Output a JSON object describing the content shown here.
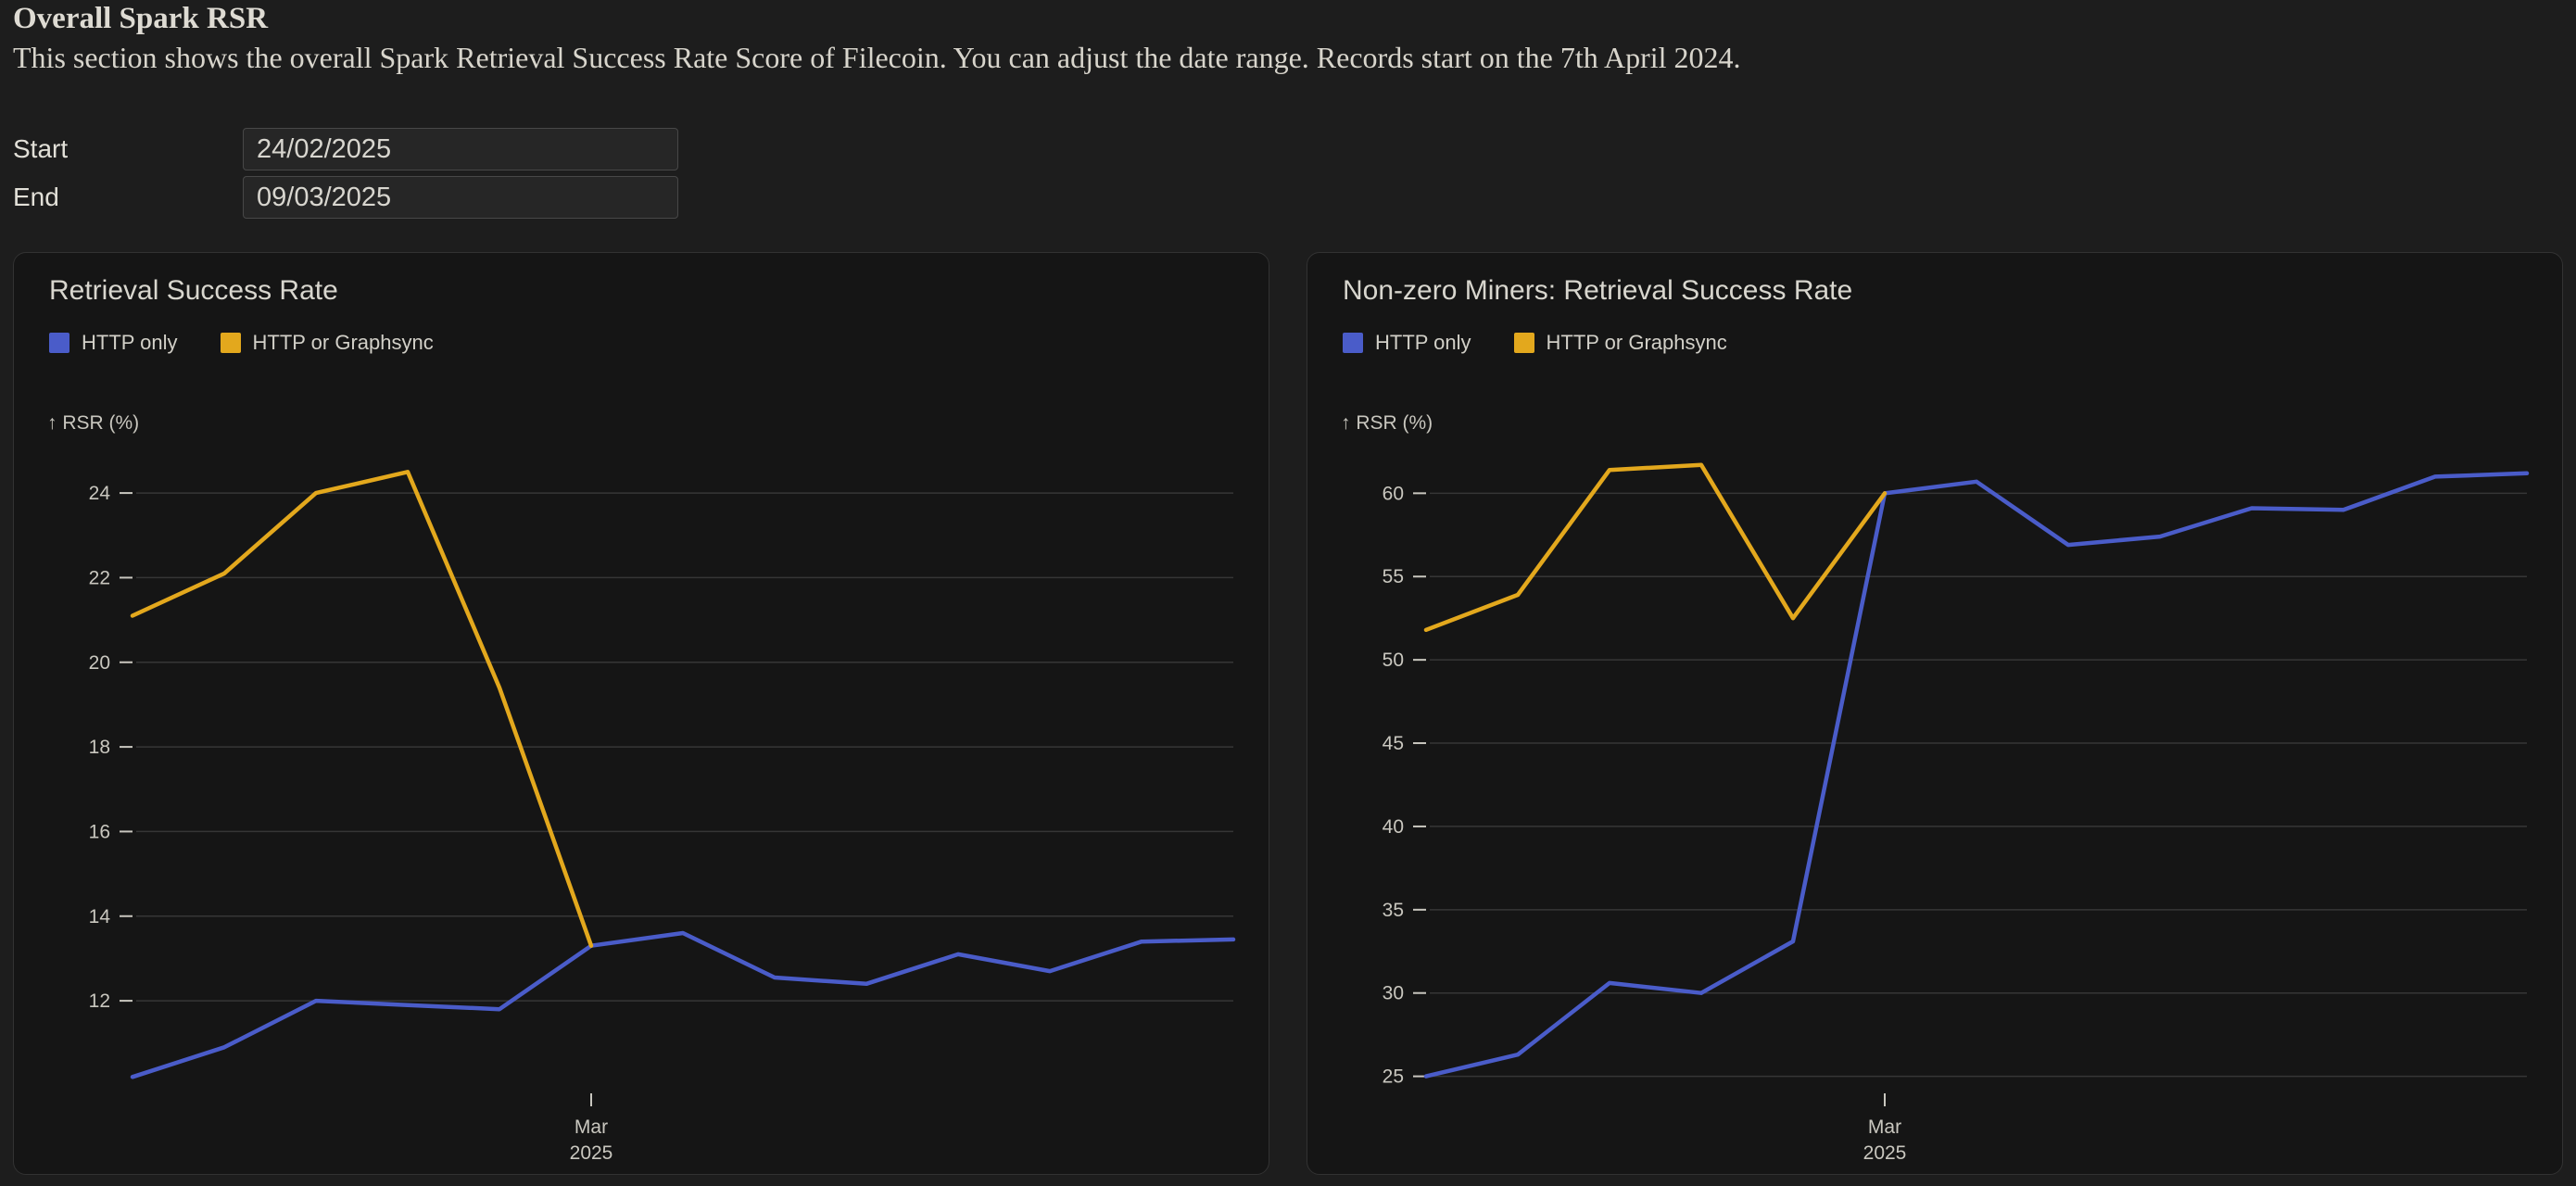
{
  "page": {
    "title": "Overall Spark RSR",
    "description": "This section shows the overall Spark Retrieval Success Rate Score of Filecoin. You can adjust the date range. Records start on the 7th April 2024."
  },
  "controls": {
    "start": {
      "label": "Start",
      "value": "24/02/2025"
    },
    "end": {
      "label": "End",
      "value": "09/03/2025"
    }
  },
  "colors": {
    "page_background": "#1d1d1d",
    "card_background": "#151515",
    "card_border": "#323232",
    "gridline": "#363636",
    "axis_text": "#c9c7bf",
    "blue_series": "#4a5cc9",
    "yellow_series": "#e3a81d"
  },
  "chart_data": [
    {
      "type": "line",
      "title": "Retrieval Success Rate",
      "ylabel": "↑ RSR (%)",
      "legend_position": "top",
      "grid": true,
      "x": [
        "2025-02-24",
        "2025-02-25",
        "2025-02-26",
        "2025-02-27",
        "2025-02-28",
        "2025-03-01",
        "2025-03-02",
        "2025-03-03",
        "2025-03-04",
        "2025-03-05",
        "2025-03-06",
        "2025-03-07",
        "2025-03-08"
      ],
      "ylim": [
        9.9,
        24.9
      ],
      "yticks": [
        24,
        22,
        20,
        18,
        16,
        14,
        12
      ],
      "xticks": [
        {
          "index": 5,
          "lines": [
            "Mar",
            "2025"
          ]
        }
      ],
      "series": [
        {
          "name": "HTTP only",
          "color": "#4a5cc9",
          "values": [
            10.2,
            10.9,
            12.0,
            11.9,
            11.8,
            13.3,
            13.6,
            12.55,
            12.4,
            13.1,
            12.7,
            13.4,
            13.45
          ]
        },
        {
          "name": "HTTP or Graphsync",
          "color": "#e3a81d",
          "values": [
            21.1,
            22.1,
            24.0,
            24.5,
            19.4,
            13.3,
            null,
            null,
            null,
            null,
            null,
            null,
            null
          ]
        }
      ]
    },
    {
      "type": "line",
      "title": "Non-zero Miners: Retrieval Success Rate",
      "ylabel": "↑ RSR (%)",
      "legend_position": "top",
      "grid": true,
      "x": [
        "2025-02-24",
        "2025-02-25",
        "2025-02-26",
        "2025-02-27",
        "2025-02-28",
        "2025-03-01",
        "2025-03-02",
        "2025-03-03",
        "2025-03-04",
        "2025-03-05",
        "2025-03-06",
        "2025-03-07",
        "2025-03-08"
      ],
      "ylim": [
        24.2,
        62.3
      ],
      "yticks": [
        60,
        55,
        50,
        45,
        40,
        35,
        30,
        25
      ],
      "xticks": [
        {
          "index": 5,
          "lines": [
            "Mar",
            "2025"
          ]
        }
      ],
      "series": [
        {
          "name": "HTTP only",
          "color": "#4a5cc9",
          "values": [
            25.0,
            26.3,
            30.6,
            30.0,
            33.1,
            60.0,
            60.7,
            56.9,
            57.4,
            59.1,
            59.0,
            61.0,
            61.2
          ]
        },
        {
          "name": "HTTP or Graphsync",
          "color": "#e3a81d",
          "values": [
            51.8,
            53.9,
            61.4,
            61.7,
            52.5,
            60.0,
            null,
            null,
            null,
            null,
            null,
            null,
            null
          ]
        }
      ]
    }
  ]
}
